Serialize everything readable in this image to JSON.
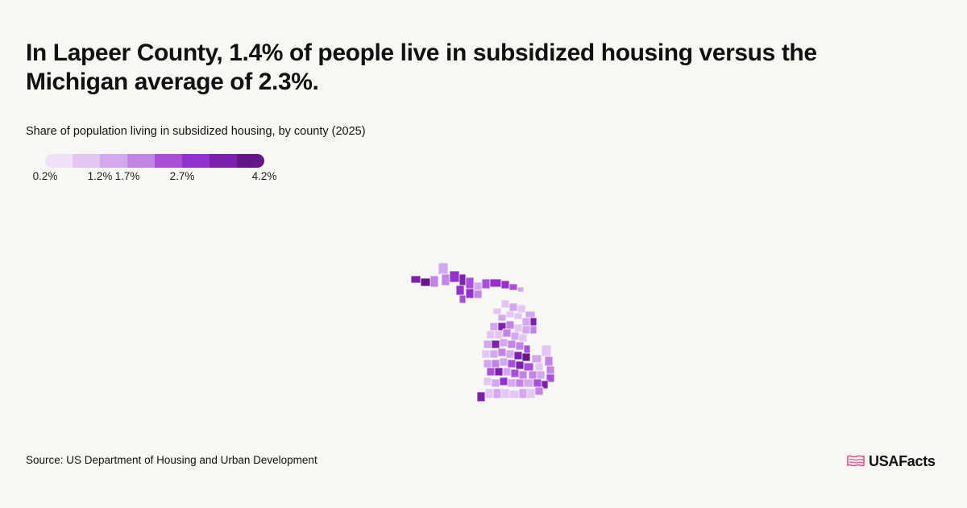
{
  "headline": "In Lapeer County, 1.4% of people live in subsidized housing versus the Michigan average of 2.3%.",
  "subtitle": "Share of population living in subsidized housing, by county (2025)",
  "legend": {
    "colors": [
      "#f1e1f8",
      "#e3c6f3",
      "#d3a8ee",
      "#c285e6",
      "#a94fd9",
      "#9430cc",
      "#7d20ae",
      "#631788"
    ],
    "labels": [
      "0.2%",
      "1.2%",
      "1.7%",
      "2.7%",
      "4.2%"
    ]
  },
  "map": {
    "state": "Michigan",
    "highlight_county": "Lapeer County",
    "highlight_value": "1.4%",
    "state_average": "2.3%"
  },
  "source": "Source: US Department of Housing and Urban Development",
  "logo": {
    "text": "USAFacts",
    "icon": "us-flag-outline-icon",
    "icon_color": "#e0508c"
  }
}
